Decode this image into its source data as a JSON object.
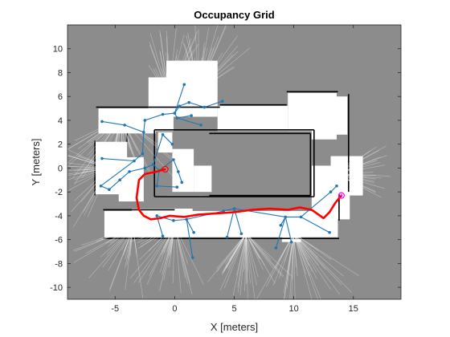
{
  "chart_data": {
    "type": "scatter",
    "title": "Occupancy Grid",
    "xlabel": "X [meters]",
    "ylabel": "Y [meters]",
    "xlim": [
      -9,
      19
    ],
    "ylim": [
      -11,
      12
    ],
    "xticks": [
      -5,
      0,
      5,
      10,
      15
    ],
    "yticks": [
      -10,
      -8,
      -6,
      -4,
      -2,
      0,
      2,
      4,
      6,
      8,
      10
    ],
    "grid": false,
    "legend": "none",
    "colors": {
      "background_unknown": "#8c8c8c",
      "free_space": "#ffffff",
      "occupied": "#000000",
      "pose_graph": "#1f77b4",
      "planned_path": "#ff0000",
      "start_marker": "#ff0000",
      "goal_marker": "#ff00ff"
    },
    "planned_path": {
      "x": [
        -0.8,
        -1.5,
        -2.5,
        -3.0,
        -3.2,
        -3.0,
        -2.6,
        -2.0,
        -1.2,
        -0.4,
        0.8,
        2.0,
        3.5,
        5.0,
        6.5,
        8.0,
        9.5,
        10.5,
        11.5,
        12.5,
        13.0,
        13.5,
        14.0
      ],
      "y": [
        -0.1,
        -0.3,
        -0.5,
        -1.0,
        -2.5,
        -3.5,
        -4.0,
        -4.3,
        -4.2,
        -4.0,
        -4.1,
        -3.9,
        -3.8,
        -3.7,
        -3.5,
        -3.4,
        -3.5,
        -3.3,
        -3.5,
        -4.2,
        -3.7,
        -2.9,
        -2.3
      ]
    },
    "start_point": {
      "x": -0.8,
      "y": -0.1
    },
    "goal_point": {
      "x": 14.0,
      "y": -2.3
    },
    "pose_graph": {
      "nodes": [
        [
          -6.1,
          3.9
        ],
        [
          -4.2,
          3.6
        ],
        [
          -2.6,
          3.0
        ],
        [
          -2.7,
          1.2
        ],
        [
          -3.4,
          0.6
        ],
        [
          -2.5,
          4.0
        ],
        [
          -1.0,
          4.5
        ],
        [
          0.0,
          4.6
        ],
        [
          0.8,
          7.0
        ],
        [
          0.4,
          5.2
        ],
        [
          1.2,
          5.5
        ],
        [
          2.5,
          5.1
        ],
        [
          4.0,
          5.6
        ],
        [
          0.2,
          4.2
        ],
        [
          2.2,
          3.6
        ],
        [
          1.4,
          4.4
        ],
        [
          -6.1,
          0.8
        ],
        [
          -6.2,
          -1.5
        ],
        [
          -5.5,
          -1.8
        ],
        [
          -4.6,
          -1.0
        ],
        [
          -3.8,
          -0.3
        ],
        [
          -2.5,
          0.0
        ],
        [
          -1.8,
          0.3
        ],
        [
          -1.3,
          -0.2
        ],
        [
          -1.0,
          2.8
        ],
        [
          -0.2,
          2.0
        ],
        [
          -1.5,
          -1.5
        ],
        [
          0.2,
          -1.6
        ],
        [
          -0.1,
          0.7
        ],
        [
          0.3,
          -0.3
        ],
        [
          0.6,
          -1.2
        ],
        [
          1.0,
          -4.3
        ],
        [
          1.6,
          -5.4
        ],
        [
          -0.1,
          -4.4
        ],
        [
          -1.5,
          -4.0
        ],
        [
          -1.0,
          -5.7
        ],
        [
          1.5,
          -7.5
        ],
        [
          4.4,
          -5.8
        ],
        [
          5.6,
          -5.5
        ],
        [
          5.0,
          -3.4
        ],
        [
          4.1,
          -3.6
        ],
        [
          8.9,
          -4.8
        ],
        [
          9.3,
          -4.1
        ],
        [
          9.8,
          -6.2
        ],
        [
          10.6,
          -4.1
        ],
        [
          8.5,
          -6.7
        ],
        [
          13.0,
          -5.4
        ],
        [
          13.1,
          -2.0
        ],
        [
          13.6,
          -1.5
        ]
      ],
      "edges": [
        [
          0,
          1
        ],
        [
          1,
          2
        ],
        [
          2,
          3
        ],
        [
          3,
          4
        ],
        [
          2,
          5
        ],
        [
          5,
          6
        ],
        [
          6,
          7
        ],
        [
          7,
          8
        ],
        [
          7,
          9
        ],
        [
          9,
          10
        ],
        [
          10,
          11
        ],
        [
          11,
          12
        ],
        [
          7,
          13
        ],
        [
          13,
          14
        ],
        [
          13,
          15
        ],
        [
          16,
          4
        ],
        [
          4,
          17
        ],
        [
          17,
          18
        ],
        [
          18,
          19
        ],
        [
          19,
          20
        ],
        [
          20,
          21
        ],
        [
          21,
          22
        ],
        [
          22,
          23
        ],
        [
          22,
          24
        ],
        [
          24,
          25
        ],
        [
          23,
          26
        ],
        [
          26,
          27
        ],
        [
          23,
          28
        ],
        [
          28,
          29
        ],
        [
          29,
          30
        ],
        [
          31,
          32
        ],
        [
          31,
          33
        ],
        [
          33,
          34
        ],
        [
          34,
          35
        ],
        [
          31,
          36
        ],
        [
          31,
          39
        ],
        [
          39,
          40
        ],
        [
          39,
          37
        ],
        [
          39,
          38
        ],
        [
          39,
          42
        ],
        [
          42,
          41
        ],
        [
          42,
          43
        ],
        [
          42,
          44
        ],
        [
          42,
          45
        ],
        [
          44,
          46
        ],
        [
          47,
          48
        ],
        [
          44,
          47
        ]
      ]
    }
  }
}
